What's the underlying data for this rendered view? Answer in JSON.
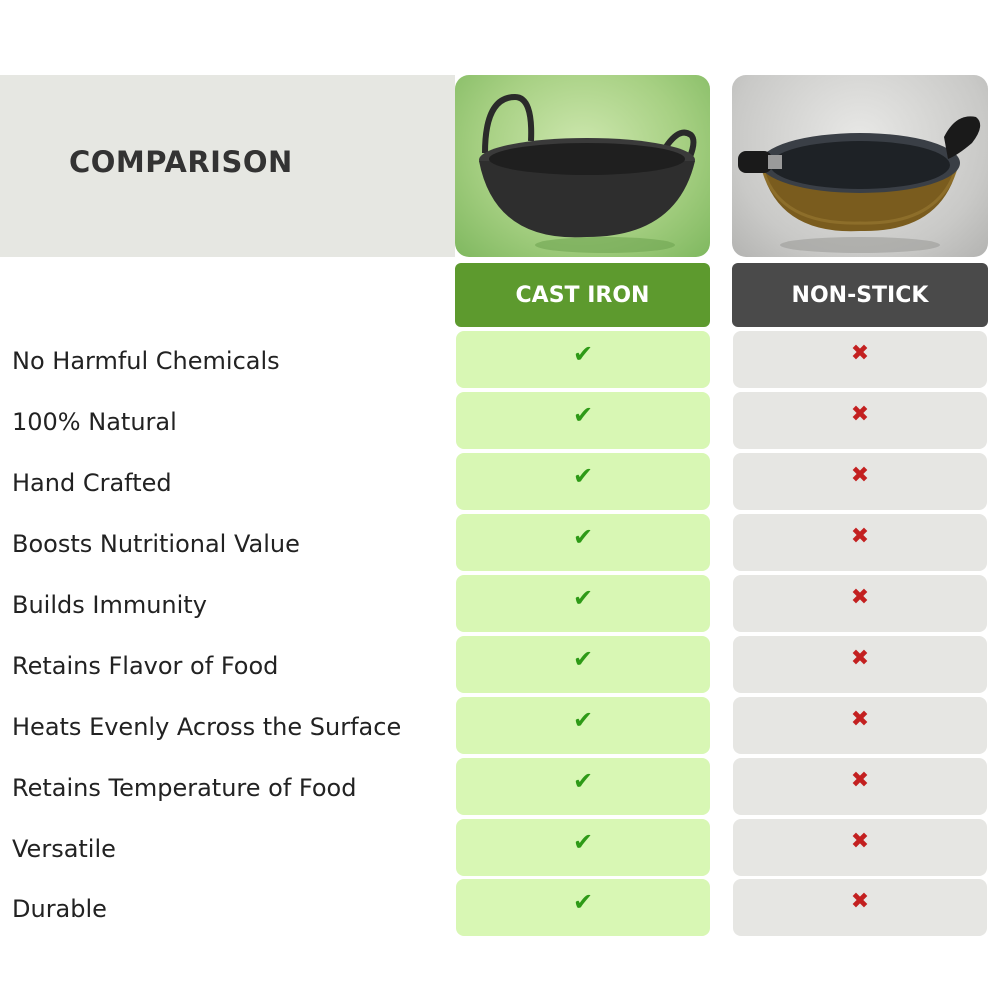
{
  "header": {
    "title": "COMPARISON"
  },
  "columns": [
    {
      "label": "CAST IRON",
      "image_icon": "cast-iron-kadai-icon",
      "accent": "#5d9a2e"
    },
    {
      "label": "NON-STICK",
      "image_icon": "non-stick-kadai-icon",
      "accent": "#4a4a4a"
    }
  ],
  "marks": {
    "yes": "✔",
    "no": "✖"
  },
  "colors": {
    "check": "#2e9a17",
    "cross": "#c32020",
    "cast_cell": "#d8f7b4",
    "non_cell": "#e6e6e3"
  },
  "rows": [
    {
      "label": "No Harmful Chemicals",
      "cast_iron": "✔",
      "non_stick": "✖"
    },
    {
      "label": "100% Natural",
      "cast_iron": "✔",
      "non_stick": "✖"
    },
    {
      "label": "Hand Crafted",
      "cast_iron": "✔",
      "non_stick": "✖"
    },
    {
      "label": "Boosts Nutritional Value",
      "cast_iron": "✔",
      "non_stick": "✖"
    },
    {
      "label": "Builds Immunity",
      "cast_iron": "✔",
      "non_stick": "✖"
    },
    {
      "label": "Retains Flavor of Food",
      "cast_iron": "✔",
      "non_stick": "✖"
    },
    {
      "label": "Heats Evenly Across the Surface",
      "cast_iron": "✔",
      "non_stick": "✖"
    },
    {
      "label": "Retains Temperature of Food",
      "cast_iron": "✔",
      "non_stick": "✖"
    },
    {
      "label": "Versatile",
      "cast_iron": "✔",
      "non_stick": "✖"
    },
    {
      "label": "Durable",
      "cast_iron": "✔",
      "non_stick": "✖"
    }
  ]
}
